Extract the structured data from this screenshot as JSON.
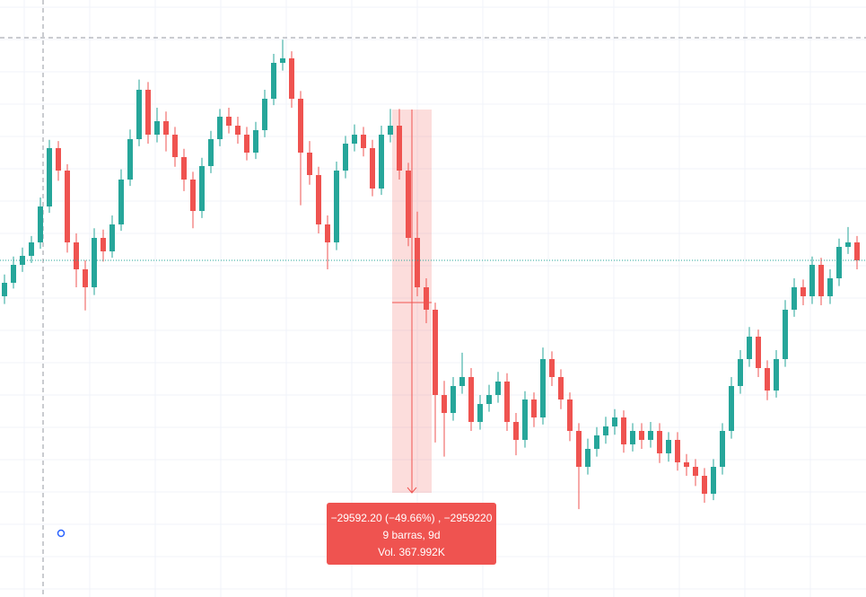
{
  "chart_data": {
    "type": "candlestick",
    "up_color": "#26a69a",
    "down_color": "#ef5350",
    "ylim": [
      21450,
      68000
    ],
    "candles": [
      [
        44900,
        46600,
        44300,
        45950
      ],
      [
        45950,
        48000,
        45500,
        47350
      ],
      [
        47350,
        48700,
        46800,
        48050
      ],
      [
        48050,
        49600,
        47500,
        49100
      ],
      [
        49100,
        52600,
        48600,
        51900
      ],
      [
        51900,
        57100,
        51400,
        56450
      ],
      [
        56450,
        57000,
        53900,
        54700
      ],
      [
        54700,
        55200,
        48300,
        49100
      ],
      [
        49100,
        49800,
        45600,
        47000
      ],
      [
        47000,
        47700,
        43800,
        45600
      ],
      [
        45600,
        50200,
        45000,
        49450
      ],
      [
        49450,
        50100,
        47600,
        48400
      ],
      [
        48400,
        51200,
        47900,
        50500
      ],
      [
        50500,
        54800,
        50000,
        54000
      ],
      [
        54000,
        57900,
        53500,
        57150
      ],
      [
        57150,
        61800,
        56600,
        61000
      ],
      [
        61000,
        61600,
        56800,
        57500
      ],
      [
        57500,
        59600,
        56900,
        58550
      ],
      [
        58550,
        59300,
        56200,
        57500
      ],
      [
        57500,
        58100,
        55000,
        55750
      ],
      [
        55750,
        56400,
        53100,
        54000
      ],
      [
        54000,
        54600,
        50200,
        51550
      ],
      [
        51550,
        55700,
        51000,
        55050
      ],
      [
        55050,
        57800,
        54500,
        57150
      ],
      [
        57150,
        59500,
        56600,
        58900
      ],
      [
        58900,
        59600,
        57600,
        58200
      ],
      [
        58200,
        58900,
        56800,
        57500
      ],
      [
        57500,
        58100,
        55500,
        56100
      ],
      [
        56100,
        58500,
        55600,
        57850
      ],
      [
        57850,
        61000,
        57300,
        60300
      ],
      [
        60300,
        63800,
        59800,
        63100
      ],
      [
        63100,
        64900,
        62500,
        63450
      ],
      [
        63450,
        64000,
        59600,
        60300
      ],
      [
        60300,
        60900,
        52000,
        56100
      ],
      [
        56100,
        57000,
        53600,
        54350
      ],
      [
        54350,
        55000,
        49800,
        50500
      ],
      [
        50500,
        51200,
        47000,
        49100
      ],
      [
        49100,
        55400,
        48500,
        54700
      ],
      [
        54700,
        57400,
        54100,
        56800
      ],
      [
        56800,
        58300,
        56200,
        57500
      ],
      [
        57500,
        58100,
        55800,
        56450
      ],
      [
        56450,
        57100,
        52700,
        53300
      ],
      [
        53300,
        58200,
        52800,
        57500
      ],
      [
        57500,
        59500,
        56900,
        58200
      ],
      [
        58200,
        59500,
        54000,
        54700
      ],
      [
        54700,
        55300,
        48800,
        49450
      ],
      [
        49450,
        51500,
        44900,
        45600
      ],
      [
        45600,
        46300,
        42800,
        43850
      ],
      [
        43850,
        44400,
        33500,
        37200
      ],
      [
        37200,
        38300,
        32400,
        35800
      ],
      [
        35800,
        38600,
        35200,
        37900
      ],
      [
        37900,
        40500,
        37300,
        38600
      ],
      [
        38600,
        39300,
        34400,
        35100
      ],
      [
        35100,
        37200,
        34500,
        36500
      ],
      [
        36500,
        38000,
        35900,
        37200
      ],
      [
        37200,
        39000,
        36600,
        38250
      ],
      [
        38250,
        38900,
        34400,
        35100
      ],
      [
        35100,
        35800,
        32500,
        33700
      ],
      [
        33700,
        37500,
        33100,
        36850
      ],
      [
        36850,
        37400,
        34700,
        35450
      ],
      [
        35450,
        40900,
        34900,
        40000
      ],
      [
        40000,
        40600,
        37900,
        38600
      ],
      [
        38600,
        39200,
        36100,
        36850
      ],
      [
        36850,
        37400,
        33600,
        34400
      ],
      [
        34400,
        35000,
        28300,
        31600
      ],
      [
        31600,
        33800,
        31000,
        33000
      ],
      [
        33000,
        34700,
        32400,
        34050
      ],
      [
        34050,
        35500,
        33400,
        34750
      ],
      [
        34750,
        36100,
        34100,
        35450
      ],
      [
        35450,
        36000,
        32700,
        33350
      ],
      [
        33350,
        35000,
        32800,
        34400
      ],
      [
        34400,
        35000,
        33000,
        33700
      ],
      [
        33700,
        35100,
        33100,
        34400
      ],
      [
        34400,
        35000,
        31900,
        32650
      ],
      [
        32650,
        34300,
        32000,
        33700
      ],
      [
        33700,
        34300,
        31300,
        31950
      ],
      [
        31950,
        32600,
        30900,
        31600
      ],
      [
        31600,
        32200,
        30100,
        30900
      ],
      [
        30900,
        31500,
        28800,
        29500
      ],
      [
        29500,
        32200,
        29000,
        31600
      ],
      [
        31600,
        35000,
        31000,
        34400
      ],
      [
        34400,
        38600,
        33800,
        37900
      ],
      [
        37900,
        40700,
        37300,
        40000
      ],
      [
        40000,
        42500,
        39400,
        41750
      ],
      [
        41750,
        42300,
        38600,
        39300
      ],
      [
        39300,
        39900,
        36800,
        37550
      ],
      [
        37550,
        40700,
        37000,
        40000
      ],
      [
        40000,
        44600,
        39400,
        43850
      ],
      [
        43850,
        46300,
        43300,
        45600
      ],
      [
        45600,
        46200,
        44200,
        44900
      ],
      [
        44900,
        48000,
        44300,
        47350
      ],
      [
        47350,
        47900,
        44200,
        44900
      ],
      [
        44900,
        47000,
        44300,
        46300
      ],
      [
        46300,
        49400,
        45700,
        48750
      ],
      [
        48750,
        50300,
        48200,
        49100
      ],
      [
        49100,
        49600,
        47000,
        47700
      ]
    ],
    "annotations": [
      "−29592.20 (−49.66%) , −2959220",
      "9 barras, 9d",
      "Vol. 367.992K"
    ]
  }
}
